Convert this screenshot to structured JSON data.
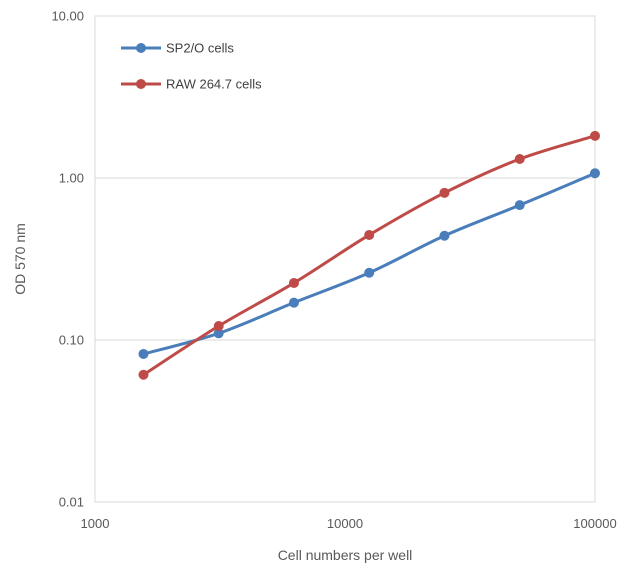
{
  "chart_data": {
    "type": "line",
    "title": "",
    "xlabel": "Cell numbers per well",
    "ylabel": "OD 570 nm",
    "x_scale": "log",
    "y_scale": "log",
    "xlim": [
      1000,
      100000
    ],
    "ylim": [
      0.01,
      10
    ],
    "x_ticks": [
      1000,
      10000,
      100000
    ],
    "x_tick_labels": [
      "1000",
      "10000",
      "100000"
    ],
    "y_ticks": [
      0.01,
      0.1,
      1,
      10
    ],
    "y_tick_labels": [
      "0.01",
      "0.10",
      "1.00",
      "10.00"
    ],
    "grid": "horizontal",
    "legend_position": "top-left",
    "series": [
      {
        "name": "SP2/O cells",
        "color": "#4a7ebb",
        "x": [
          1563,
          3125,
          6250,
          12500,
          25000,
          50000,
          100000
        ],
        "y": [
          0.082,
          0.11,
          0.17,
          0.26,
          0.44,
          0.68,
          1.07
        ]
      },
      {
        "name": "RAW 264.7 cells",
        "color": "#be4b48",
        "x": [
          1563,
          3125,
          6250,
          12500,
          25000,
          50000,
          100000
        ],
        "y": [
          0.061,
          0.122,
          0.225,
          0.445,
          0.81,
          1.31,
          1.82
        ]
      }
    ]
  }
}
